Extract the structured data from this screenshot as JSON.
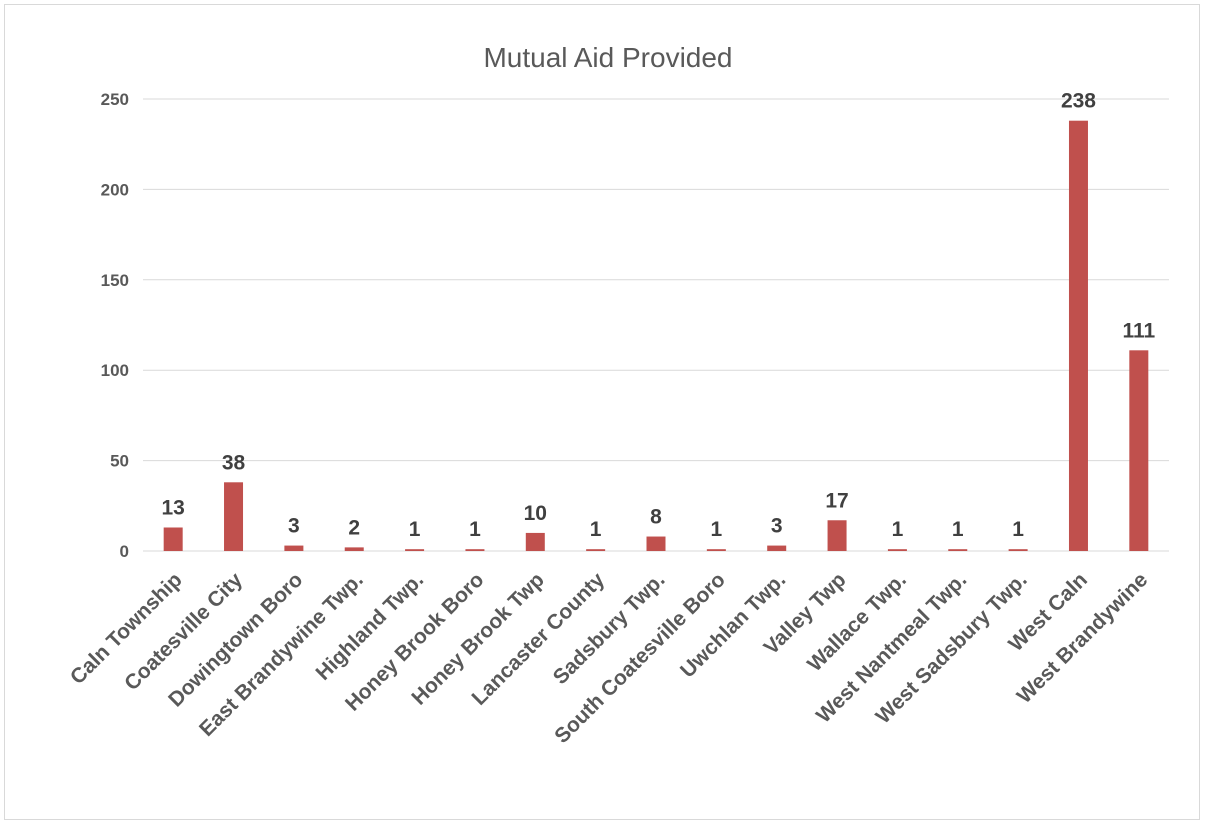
{
  "chart_data": {
    "type": "bar",
    "title": "Mutual Aid Provided",
    "xlabel": "",
    "ylabel": "",
    "ylim": [
      0,
      250
    ],
    "yticks": [
      0,
      50,
      100,
      150,
      200,
      250
    ],
    "grid": true,
    "legend": "none",
    "categories": [
      "Caln Township",
      "Coatesville City",
      "Dowingtown Boro",
      "East Brandywine Twp.",
      "Highland Twp.",
      "Honey Brook Boro",
      "Honey Brook Twp",
      "Lancaster County",
      "Sadsbury Twp.",
      "South Coatesville Boro",
      "Uwchlan Twp.",
      "Valley Twp",
      "Wallace Twp.",
      "West Nantmeal Twp.",
      "West Sadsbury Twp.",
      "West Caln",
      "West Brandywine"
    ],
    "values": [
      13,
      38,
      3,
      2,
      1,
      1,
      10,
      1,
      8,
      1,
      3,
      17,
      1,
      1,
      1,
      238,
      111
    ],
    "colors": {
      "bar": "#c0504d",
      "grid": "#d9d9d9",
      "text": "#595959"
    }
  }
}
